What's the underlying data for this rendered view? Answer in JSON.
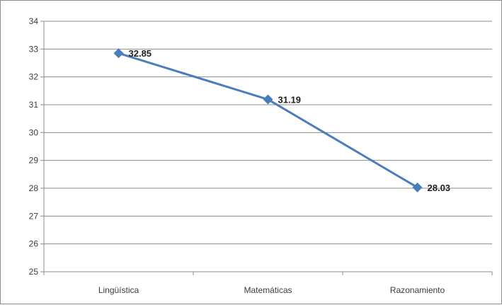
{
  "chart_data": {
    "type": "line",
    "title": "",
    "xlabel": "",
    "ylabel": "",
    "categories": [
      "Lingüística",
      "Matemáticas",
      "Razonamiento"
    ],
    "series": [
      {
        "values": [
          32.85,
          31.19,
          28.03
        ],
        "data_labels": [
          "32.85",
          "31.19",
          "28.03"
        ],
        "color": "#4a7ebb",
        "marker": "diamond"
      }
    ],
    "ylim": [
      25,
      34
    ],
    "y_ticks": [
      "25",
      "26",
      "27",
      "28",
      "29",
      "30",
      "31",
      "32",
      "33",
      "34"
    ],
    "grid": true,
    "legend": "none"
  }
}
